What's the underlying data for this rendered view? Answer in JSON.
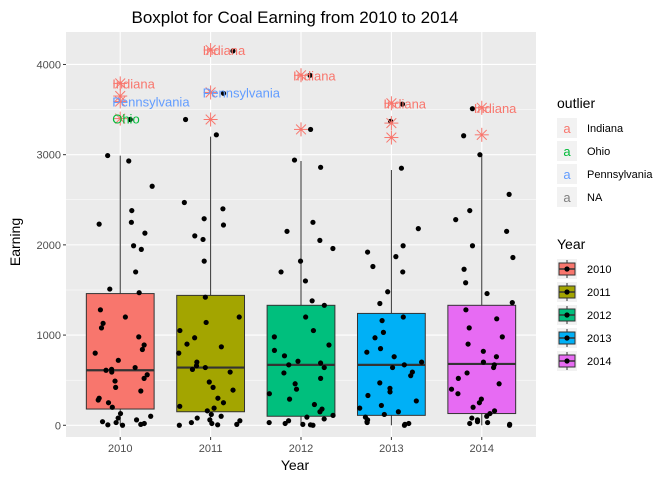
{
  "chart_data": {
    "type": "boxplot",
    "title": "Boxplot for Coal Earning from 2010 to 2014",
    "xlabel": "Year",
    "ylabel": "Earning",
    "categories": [
      "2010",
      "2011",
      "2012",
      "2013",
      "2014"
    ],
    "yticks": [
      0,
      1000,
      2000,
      3000,
      4000
    ],
    "ylim": [
      -130,
      4360
    ],
    "grid": true,
    "legend_position": "right",
    "boxes": [
      {
        "category": "2010",
        "color": "#F8766D",
        "q1": 180,
        "median": 610,
        "q3": 1460,
        "whisker_low": 0,
        "whisker_high": 2990
      },
      {
        "category": "2011",
        "color": "#A3A500",
        "q1": 150,
        "median": 640,
        "q3": 1440,
        "whisker_low": 0,
        "whisker_high": 3200
      },
      {
        "category": "2012",
        "color": "#00BF7D",
        "q1": 100,
        "median": 670,
        "q3": 1330,
        "whisker_low": 0,
        "whisker_high": 2930
      },
      {
        "category": "2013",
        "color": "#00B0F6",
        "q1": 110,
        "median": 670,
        "q3": 1240,
        "whisker_low": 0,
        "whisker_high": 2830
      },
      {
        "category": "2014",
        "color": "#E76BF3",
        "q1": 130,
        "median": 680,
        "q3": 1330,
        "whisker_low": 0,
        "whisker_high": 3000
      }
    ],
    "jitter_points": [
      {
        "category": "2010",
        "values": [
          3390,
          2990,
          2930,
          2650,
          2380,
          2250,
          2230,
          2130,
          1990,
          1950,
          1700,
          1510,
          1470,
          1280,
          1200,
          1130,
          1080,
          980,
          890,
          840,
          800,
          720,
          640,
          620,
          610,
          590,
          560,
          520,
          490,
          420,
          380,
          300,
          280,
          250,
          200,
          130,
          100,
          80,
          60,
          40,
          30,
          20,
          10,
          5,
          0
        ]
      },
      {
        "category": "2011",
        "values": [
          4150,
          3680,
          3390,
          3220,
          2470,
          2400,
          2290,
          2220,
          2100,
          2060,
          1820,
          1420,
          1200,
          1140,
          1050,
          970,
          900,
          870,
          800,
          700,
          660,
          640,
          620,
          590,
          480,
          420,
          390,
          300,
          250,
          210,
          190,
          160,
          120,
          100,
          80,
          60,
          50,
          30,
          20,
          10,
          5,
          0
        ]
      },
      {
        "category": "2012",
        "values": [
          3880,
          3280,
          2940,
          2860,
          2250,
          2150,
          2050,
          1960,
          1820,
          1700,
          1600,
          1380,
          1330,
          1200,
          1050,
          980,
          890,
          830,
          770,
          710,
          690,
          670,
          640,
          580,
          520,
          460,
          400,
          350,
          290,
          230,
          180,
          150,
          110,
          90,
          70,
          50,
          30,
          20,
          10,
          5,
          0
        ]
      },
      {
        "category": "2013",
        "values": [
          3560,
          3370,
          2850,
          2180,
          1990,
          1920,
          1870,
          1760,
          1700,
          1480,
          1350,
          1200,
          1160,
          1030,
          970,
          850,
          810,
          760,
          700,
          670,
          640,
          590,
          550,
          470,
          410,
          370,
          330,
          270,
          220,
          190,
          150,
          120,
          90,
          60,
          40,
          30,
          20,
          10,
          0
        ]
      },
      {
        "category": "2014",
        "values": [
          3510,
          3210,
          3000,
          2560,
          2380,
          2280,
          2150,
          1990,
          1860,
          1730,
          1580,
          1460,
          1360,
          1280,
          1180,
          1080,
          980,
          900,
          820,
          760,
          700,
          670,
          640,
          580,
          520,
          460,
          400,
          350,
          290,
          250,
          200,
          160,
          130,
          100,
          80,
          60,
          40,
          30,
          20,
          10,
          0
        ]
      }
    ],
    "outliers": [
      {
        "category": "2010",
        "value": 3790,
        "state": "Indiana",
        "labeled": true
      },
      {
        "category": "2010",
        "value": 3650,
        "state": "Indiana",
        "labeled": false
      },
      {
        "category": "2010",
        "value": 3590,
        "state": "Pennsylvania",
        "labeled": true
      },
      {
        "category": "2010",
        "value": 3400,
        "state": "Ohio",
        "labeled": true
      },
      {
        "category": "2011",
        "value": 4160,
        "state": "Indiana",
        "labeled": true
      },
      {
        "category": "2011",
        "value": 3690,
        "state": "Pennsylvania",
        "labeled": true
      },
      {
        "category": "2011",
        "value": 3390,
        "state": "Indiana",
        "labeled": false
      },
      {
        "category": "2012",
        "value": 3880,
        "state": "Indiana",
        "labeled": true
      },
      {
        "category": "2012",
        "value": 3280,
        "state": "Indiana",
        "labeled": false
      },
      {
        "category": "2013",
        "value": 3570,
        "state": "Indiana",
        "labeled": true
      },
      {
        "category": "2013",
        "value": 3350,
        "state": "Indiana",
        "labeled": false
      },
      {
        "category": "2013",
        "value": 3190,
        "state": "Indiana",
        "labeled": false
      },
      {
        "category": "2014",
        "value": 3520,
        "state": "Indiana",
        "labeled": true
      },
      {
        "category": "2014",
        "value": 3220,
        "state": "Indiana",
        "labeled": false
      }
    ],
    "legend_outlier": {
      "title": "outlier",
      "entries": [
        {
          "label": "Indiana",
          "color": "#F8766D"
        },
        {
          "label": "Ohio",
          "color": "#00BA38"
        },
        {
          "label": "Pennsylvania",
          "color": "#619CFF"
        },
        {
          "label": "NA",
          "color": "#7F7F7F"
        }
      ]
    },
    "legend_year": {
      "title": "Year",
      "entries": [
        {
          "label": "2010",
          "color": "#F8766D"
        },
        {
          "label": "2011",
          "color": "#A3A500"
        },
        {
          "label": "2012",
          "color": "#00BF7D"
        },
        {
          "label": "2013",
          "color": "#00B0F6"
        },
        {
          "label": "2014",
          "color": "#E76BF3"
        }
      ]
    }
  }
}
